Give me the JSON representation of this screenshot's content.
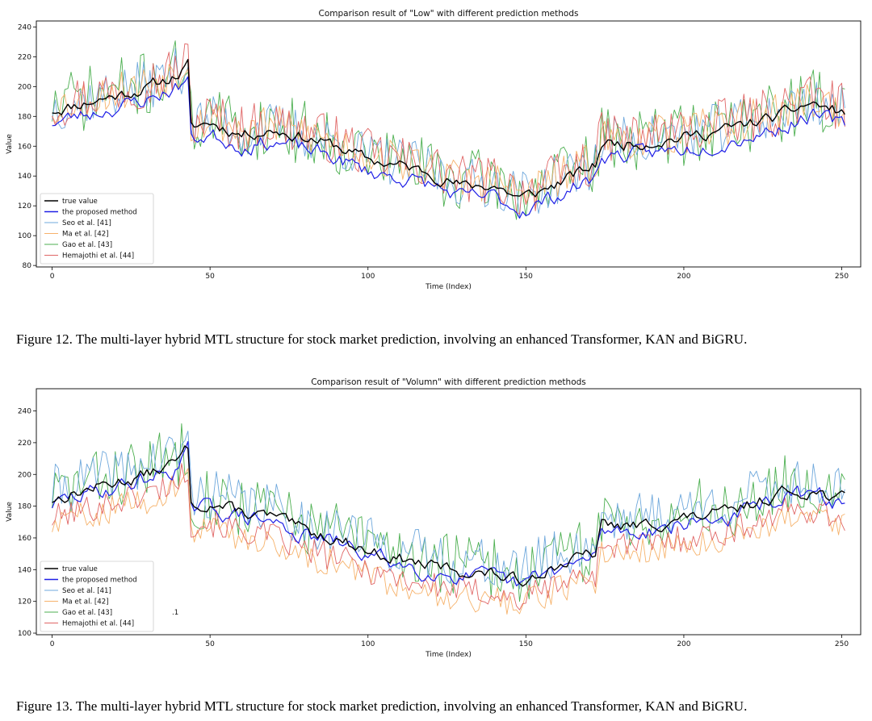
{
  "captions": {
    "fig12": "Figure 12. The multi-layer hybrid MTL structure for stock market prediction, involving an enhanced Transformer, KAN and BiGRU.",
    "fig13": "Figure 13. The multi-layer hybrid MTL structure for stock market prediction, involving an enhanced Transformer, KAN and BiGRU."
  },
  "chart_data": [
    {
      "type": "line",
      "title": "Comparison result of \"Low\" with different prediction methods",
      "xlabel": "Time (Index)",
      "ylabel": "Value",
      "xlim": [
        -5,
        256
      ],
      "ylim": [
        79,
        244
      ],
      "xticks": [
        0,
        50,
        100,
        150,
        200,
        250
      ],
      "yticks": [
        80,
        100,
        120,
        140,
        160,
        180,
        200,
        220,
        240
      ],
      "grid": false,
      "legend_position": "lower-left",
      "stray_annotation": "",
      "anchors": [
        [
          0,
          184
        ],
        [
          10,
          189
        ],
        [
          20,
          194
        ],
        [
          30,
          199
        ],
        [
          40,
          208
        ],
        [
          43,
          214
        ],
        [
          44,
          172
        ],
        [
          50,
          176
        ],
        [
          60,
          168
        ],
        [
          70,
          171
        ],
        [
          80,
          166
        ],
        [
          90,
          160
        ],
        [
          100,
          151
        ],
        [
          110,
          147
        ],
        [
          120,
          142
        ],
        [
          130,
          133
        ],
        [
          140,
          134
        ],
        [
          148,
          125
        ],
        [
          155,
          130
        ],
        [
          165,
          140
        ],
        [
          172,
          147
        ],
        [
          174,
          162
        ],
        [
          185,
          162
        ],
        [
          200,
          166
        ],
        [
          215,
          172
        ],
        [
          230,
          180
        ],
        [
          240,
          189
        ],
        [
          251,
          182
        ]
      ],
      "series": [
        {
          "name": "true value",
          "color": "#000000",
          "noise": 3,
          "bias": 0,
          "width": 1.4,
          "seed": 11
        },
        {
          "name": "the proposed method",
          "color": "#1f1fe6",
          "noise": 4,
          "bias": -8,
          "width": 1.2,
          "seed": 23
        },
        {
          "name": "Seo et al. [41]",
          "color": "#6fa8dc",
          "noise": 17,
          "bias": 2,
          "width": 0.9,
          "seed": 37
        },
        {
          "name": "Ma et al. [42]",
          "color": "#f6b26b",
          "noise": 14,
          "bias": 3,
          "width": 0.9,
          "seed": 53
        },
        {
          "name": "Gao et al. [43]",
          "color": "#4caf50",
          "noise": 22,
          "bias": 3,
          "width": 0.9,
          "seed": 71
        },
        {
          "name": "Hemajothi et al. [44]",
          "color": "#e06666",
          "noise": 17,
          "bias": 4,
          "width": 0.9,
          "seed": 97
        }
      ]
    },
    {
      "type": "line",
      "title": "Comparison result of \"Volumn\" with different prediction methods",
      "xlabel": "Time (Index)",
      "ylabel": "Value",
      "xlim": [
        -5,
        256
      ],
      "ylim": [
        99,
        254
      ],
      "xticks": [
        0,
        50,
        100,
        150,
        200,
        250
      ],
      "yticks": [
        100,
        120,
        140,
        160,
        180,
        200,
        220,
        240
      ],
      "grid": false,
      "legend_position": "lower-left",
      "stray_annotation": ".1",
      "anchors": [
        [
          0,
          184
        ],
        [
          10,
          190
        ],
        [
          20,
          195
        ],
        [
          30,
          200
        ],
        [
          40,
          208
        ],
        [
          43,
          217
        ],
        [
          44,
          180
        ],
        [
          50,
          182
        ],
        [
          60,
          176
        ],
        [
          70,
          173
        ],
        [
          80,
          164
        ],
        [
          90,
          160
        ],
        [
          100,
          152
        ],
        [
          110,
          147
        ],
        [
          120,
          142
        ],
        [
          130,
          139
        ],
        [
          140,
          137
        ],
        [
          148,
          132
        ],
        [
          155,
          140
        ],
        [
          165,
          146
        ],
        [
          172,
          150
        ],
        [
          174,
          168
        ],
        [
          185,
          167
        ],
        [
          200,
          172
        ],
        [
          215,
          176
        ],
        [
          230,
          188
        ],
        [
          240,
          190
        ],
        [
          251,
          184
        ]
      ],
      "series": [
        {
          "name": "true value",
          "color": "#000000",
          "noise": 3,
          "bias": 0,
          "width": 1.4,
          "seed": 13
        },
        {
          "name": "the proposed method",
          "color": "#1f1fe6",
          "noise": 4,
          "bias": -3,
          "width": 1.2,
          "seed": 29
        },
        {
          "name": "Seo et al. [41]",
          "color": "#6fa8dc",
          "noise": 16,
          "bias": 6,
          "width": 0.9,
          "seed": 41
        },
        {
          "name": "Ma et al. [42]",
          "color": "#f6b26b",
          "noise": 9,
          "bias": -16,
          "width": 0.9,
          "seed": 59
        },
        {
          "name": "Gao et al. [43]",
          "color": "#4caf50",
          "noise": 20,
          "bias": 4,
          "width": 0.9,
          "seed": 83
        },
        {
          "name": "Hemajothi et al. [44]",
          "color": "#e06666",
          "noise": 9,
          "bias": -12,
          "width": 0.9,
          "seed": 101
        }
      ]
    }
  ]
}
